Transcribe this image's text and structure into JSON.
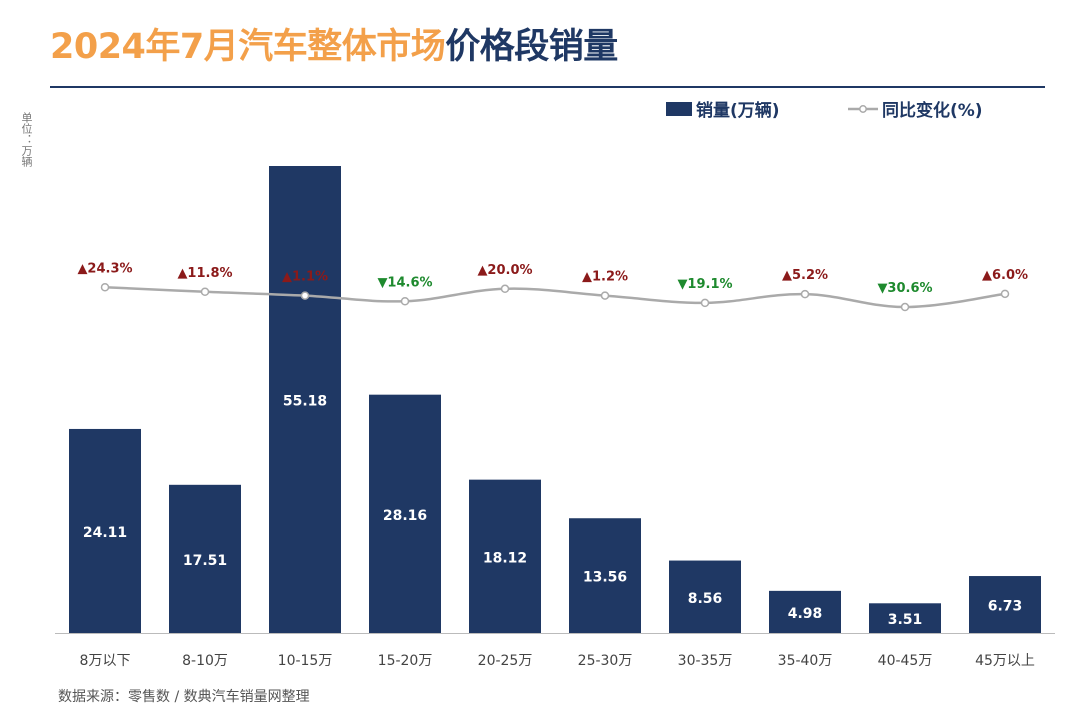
{
  "title": {
    "part1": "2024年7月汽车整体市场",
    "part2": "价格段销量"
  },
  "unit_label": "单位：万辆",
  "legend": {
    "bar": "销量(万辆)",
    "line": "同比变化(%)"
  },
  "source": "数据来源：零售数 / 数典汽车销量网整理",
  "colors": {
    "bar": "#1f3864",
    "line": "#aaaaaa",
    "up": "#8b1a1a",
    "down": "#1e8a2e",
    "title_orange": "#f3a04a"
  },
  "chart_data": {
    "type": "bar",
    "title": "2024年7月汽车整体市场价格段销量",
    "xlabel": "",
    "ylabel": "销量(万辆)",
    "ylim": [
      0,
      60
    ],
    "categories": [
      "8万以下",
      "8-10万",
      "10-15万",
      "15-20万",
      "20-25万",
      "25-30万",
      "30-35万",
      "35-40万",
      "40-45万",
      "45万以上"
    ],
    "series": [
      {
        "name": "销量(万辆)",
        "type": "bar",
        "values": [
          24.11,
          17.51,
          55.18,
          28.16,
          18.12,
          13.56,
          8.56,
          4.98,
          3.51,
          6.73
        ],
        "labels": [
          "24.11",
          "17.51",
          "55.18",
          "28.16",
          "18.12",
          "13.56",
          "8.56",
          "4.98",
          "3.51",
          "6.73"
        ]
      },
      {
        "name": "同比变化(%)",
        "type": "line",
        "values": [
          24.3,
          11.8,
          1.1,
          -14.6,
          20.0,
          1.2,
          -19.1,
          5.2,
          -30.6,
          6.0
        ],
        "labels": [
          "▲24.3%",
          "▲11.8%",
          "▲1.1%",
          "▼14.6%",
          "▲20.0%",
          "▲1.2%",
          "▼19.1%",
          "▲5.2%",
          "▼30.6%",
          "▲6.0%"
        ]
      }
    ]
  }
}
